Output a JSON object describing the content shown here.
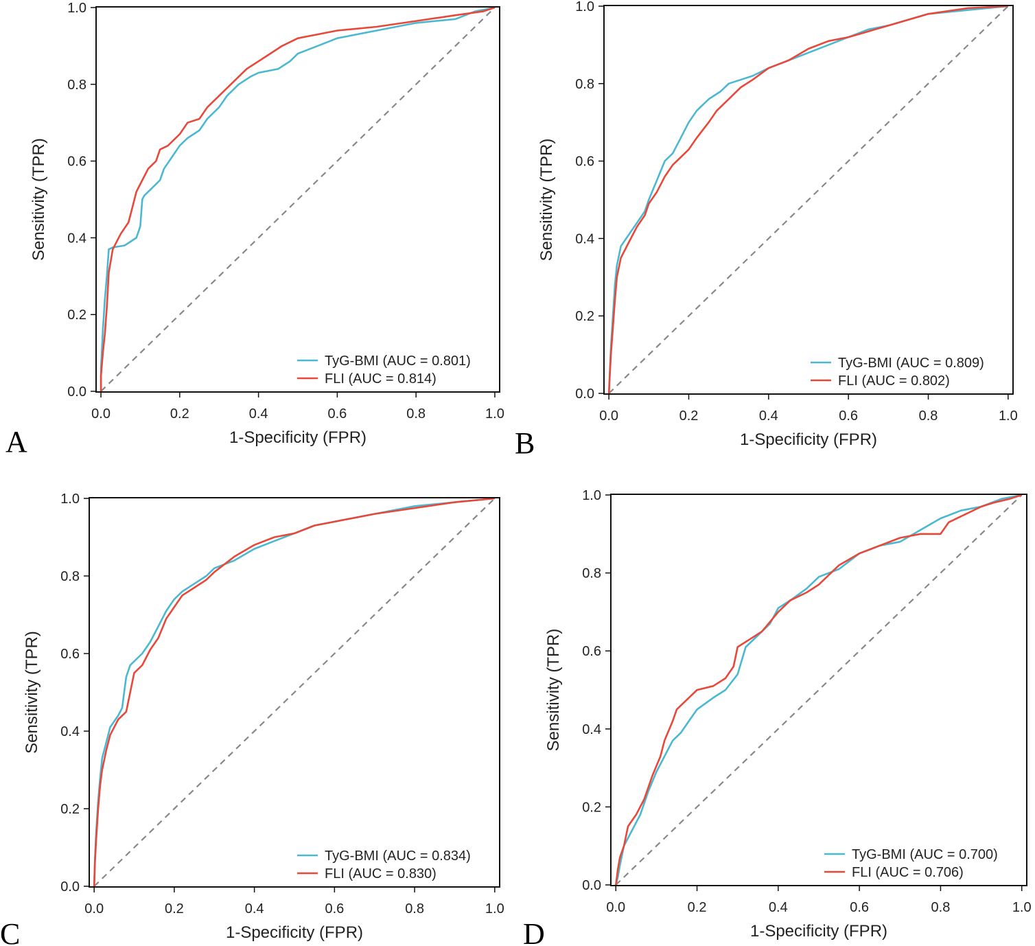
{
  "figure": {
    "colors": {
      "tyg": "#4bb8d1",
      "fli": "#e8483a",
      "diag": "#888888",
      "frame": "#111111"
    }
  },
  "chart_data": [
    {
      "type": "line",
      "panel": "A",
      "xlabel": "1-Specificity (FPR)",
      "ylabel": "Sensitivity (TPR)",
      "xlim": [
        0,
        1
      ],
      "ylim": [
        0,
        1
      ],
      "xticks": [
        "0.0",
        "0.2",
        "0.4",
        "0.6",
        "0.8",
        "1.0"
      ],
      "yticks": [
        "0.0",
        "0.2",
        "0.4",
        "0.6",
        "0.8",
        "1.0"
      ],
      "legend_position": "bottom-right",
      "series": [
        {
          "name": "TyG-BMI",
          "legend": "TyG-BMI (AUC = 0.801)",
          "color": "#4bb8d1",
          "x": [
            0,
            0,
            0.005,
            0.01,
            0.015,
            0.02,
            0.03,
            0.06,
            0.09,
            0.1,
            0.105,
            0.11,
            0.13,
            0.15,
            0.16,
            0.18,
            0.2,
            0.22,
            0.25,
            0.27,
            0.3,
            0.32,
            0.35,
            0.38,
            0.4,
            0.45,
            0.48,
            0.5,
            0.55,
            0.6,
            0.7,
            0.8,
            0.9,
            0.95,
            1
          ],
          "y": [
            0,
            0.06,
            0.16,
            0.24,
            0.3,
            0.37,
            0.375,
            0.38,
            0.4,
            0.43,
            0.5,
            0.51,
            0.53,
            0.55,
            0.58,
            0.61,
            0.64,
            0.66,
            0.68,
            0.71,
            0.74,
            0.77,
            0.8,
            0.82,
            0.83,
            0.84,
            0.86,
            0.88,
            0.9,
            0.92,
            0.94,
            0.96,
            0.97,
            0.99,
            1
          ]
        },
        {
          "name": "FLI",
          "legend": "FLI (AUC = 0.814)",
          "color": "#e8483a",
          "x": [
            0,
            0,
            0.005,
            0.01,
            0.015,
            0.02,
            0.03,
            0.05,
            0.07,
            0.08,
            0.09,
            0.1,
            0.12,
            0.14,
            0.15,
            0.17,
            0.2,
            0.22,
            0.25,
            0.27,
            0.3,
            0.33,
            0.35,
            0.37,
            0.4,
            0.43,
            0.46,
            0.5,
            0.55,
            0.6,
            0.7,
            0.8,
            0.9,
            0.97,
            1
          ],
          "y": [
            0,
            0.04,
            0.1,
            0.15,
            0.22,
            0.31,
            0.37,
            0.41,
            0.44,
            0.48,
            0.52,
            0.54,
            0.58,
            0.6,
            0.63,
            0.64,
            0.67,
            0.7,
            0.71,
            0.74,
            0.77,
            0.8,
            0.82,
            0.84,
            0.86,
            0.88,
            0.9,
            0.92,
            0.93,
            0.94,
            0.95,
            0.965,
            0.98,
            0.99,
            1
          ]
        },
        {
          "name": "diagonal",
          "style": "dashed",
          "color": "#888888",
          "x": [
            0,
            1
          ],
          "y": [
            0,
            1
          ]
        }
      ]
    },
    {
      "type": "line",
      "panel": "B",
      "xlabel": "1-Specificity (FPR)",
      "ylabel": "Sensitivity (TPR)",
      "xlim": [
        0,
        1
      ],
      "ylim": [
        0,
        1
      ],
      "xticks": [
        "0.0",
        "0.2",
        "0.4",
        "0.6",
        "0.8",
        "1.0"
      ],
      "yticks": [
        "0.0",
        "0.2",
        "0.4",
        "0.6",
        "0.8",
        "1.0"
      ],
      "legend_position": "bottom-right",
      "series": [
        {
          "name": "TyG-BMI",
          "legend": "TyG-BMI (AUC = 0.809)",
          "color": "#4bb8d1",
          "x": [
            0,
            0.002,
            0.005,
            0.01,
            0.015,
            0.02,
            0.03,
            0.05,
            0.07,
            0.09,
            0.1,
            0.12,
            0.14,
            0.16,
            0.18,
            0.2,
            0.22,
            0.25,
            0.28,
            0.3,
            0.33,
            0.36,
            0.4,
            0.45,
            0.5,
            0.55,
            0.6,
            0.65,
            0.7,
            0.8,
            0.9,
            1
          ],
          "y": [
            0,
            0.05,
            0.12,
            0.2,
            0.28,
            0.33,
            0.38,
            0.41,
            0.44,
            0.47,
            0.5,
            0.55,
            0.6,
            0.62,
            0.66,
            0.7,
            0.73,
            0.76,
            0.78,
            0.8,
            0.81,
            0.82,
            0.84,
            0.86,
            0.88,
            0.9,
            0.92,
            0.94,
            0.95,
            0.98,
            0.99,
            1
          ]
        },
        {
          "name": "FLI",
          "legend": "FLI (AUC = 0.802)",
          "color": "#e8483a",
          "x": [
            0,
            0.002,
            0.005,
            0.01,
            0.015,
            0.02,
            0.03,
            0.05,
            0.07,
            0.09,
            0.1,
            0.12,
            0.14,
            0.16,
            0.18,
            0.2,
            0.22,
            0.25,
            0.27,
            0.3,
            0.33,
            0.36,
            0.4,
            0.45,
            0.5,
            0.55,
            0.6,
            0.65,
            0.7,
            0.8,
            0.9,
            1
          ],
          "y": [
            0,
            0.04,
            0.1,
            0.17,
            0.24,
            0.3,
            0.35,
            0.39,
            0.43,
            0.46,
            0.49,
            0.52,
            0.56,
            0.59,
            0.61,
            0.63,
            0.66,
            0.7,
            0.73,
            0.76,
            0.79,
            0.81,
            0.84,
            0.86,
            0.89,
            0.91,
            0.92,
            0.935,
            0.95,
            0.98,
            0.995,
            1
          ]
        },
        {
          "name": "diagonal",
          "style": "dashed",
          "color": "#888888",
          "x": [
            0,
            1
          ],
          "y": [
            0,
            1
          ]
        }
      ]
    },
    {
      "type": "line",
      "panel": "C",
      "xlabel": "1-Specificity (FPR)",
      "ylabel": "Sensitivity (TPR)",
      "xlim": [
        0,
        1
      ],
      "ylim": [
        0,
        1
      ],
      "xticks": [
        "0.0",
        "0.2",
        "0.4",
        "0.6",
        "0.8",
        "1.0"
      ],
      "yticks": [
        "0.0",
        "0.2",
        "0.4",
        "0.6",
        "0.8",
        "1.0"
      ],
      "legend_position": "bottom-right",
      "series": [
        {
          "name": "TyG-BMI",
          "legend": "TyG-BMI (AUC = 0.834)",
          "color": "#4bb8d1",
          "x": [
            0,
            0.002,
            0.005,
            0.01,
            0.015,
            0.02,
            0.03,
            0.04,
            0.06,
            0.07,
            0.075,
            0.08,
            0.09,
            0.1,
            0.12,
            0.14,
            0.16,
            0.18,
            0.2,
            0.22,
            0.25,
            0.28,
            0.3,
            0.35,
            0.4,
            0.45,
            0.5,
            0.55,
            0.6,
            0.7,
            0.8,
            0.9,
            1
          ],
          "y": [
            0,
            0.07,
            0.14,
            0.22,
            0.28,
            0.33,
            0.37,
            0.41,
            0.44,
            0.46,
            0.5,
            0.54,
            0.57,
            0.58,
            0.6,
            0.63,
            0.67,
            0.71,
            0.74,
            0.76,
            0.78,
            0.8,
            0.82,
            0.84,
            0.87,
            0.89,
            0.91,
            0.93,
            0.94,
            0.96,
            0.98,
            0.99,
            1
          ]
        },
        {
          "name": "FLI",
          "legend": "FLI (AUC = 0.830)",
          "color": "#e8483a",
          "x": [
            0,
            0.002,
            0.005,
            0.01,
            0.015,
            0.02,
            0.03,
            0.04,
            0.06,
            0.08,
            0.09,
            0.1,
            0.12,
            0.14,
            0.16,
            0.18,
            0.2,
            0.22,
            0.25,
            0.28,
            0.3,
            0.35,
            0.4,
            0.45,
            0.5,
            0.55,
            0.6,
            0.7,
            0.8,
            0.9,
            1
          ],
          "y": [
            0,
            0.06,
            0.12,
            0.2,
            0.26,
            0.3,
            0.35,
            0.39,
            0.43,
            0.45,
            0.5,
            0.55,
            0.57,
            0.61,
            0.64,
            0.69,
            0.72,
            0.75,
            0.77,
            0.79,
            0.81,
            0.85,
            0.88,
            0.9,
            0.91,
            0.93,
            0.94,
            0.96,
            0.975,
            0.99,
            1
          ]
        },
        {
          "name": "diagonal",
          "style": "dashed",
          "color": "#888888",
          "x": [
            0,
            1
          ],
          "y": [
            0,
            1
          ]
        }
      ]
    },
    {
      "type": "line",
      "panel": "D",
      "xlabel": "1-Specificity (FPR)",
      "ylabel": "Sensitivity (TPR)",
      "xlim": [
        0,
        1
      ],
      "ylim": [
        0,
        1
      ],
      "xticks": [
        "0.0",
        "0.2",
        "0.4",
        "0.6",
        "0.8",
        "1.0"
      ],
      "yticks": [
        "0.0",
        "0.2",
        "0.4",
        "0.6",
        "0.8",
        "1.0"
      ],
      "legend_position": "bottom-right",
      "series": [
        {
          "name": "TyG-BMI",
          "legend": "TyG-BMI (AUC = 0.700)",
          "color": "#4bb8d1",
          "x": [
            0,
            0.005,
            0.01,
            0.02,
            0.04,
            0.06,
            0.08,
            0.1,
            0.12,
            0.14,
            0.16,
            0.18,
            0.2,
            0.24,
            0.27,
            0.3,
            0.32,
            0.35,
            0.38,
            0.4,
            0.43,
            0.47,
            0.5,
            0.55,
            0.6,
            0.65,
            0.7,
            0.75,
            0.8,
            0.85,
            0.9,
            0.95,
            1
          ],
          "y": [
            0,
            0.02,
            0.05,
            0.1,
            0.14,
            0.18,
            0.24,
            0.29,
            0.33,
            0.37,
            0.39,
            0.42,
            0.45,
            0.48,
            0.5,
            0.54,
            0.61,
            0.64,
            0.67,
            0.71,
            0.73,
            0.76,
            0.79,
            0.81,
            0.85,
            0.87,
            0.88,
            0.91,
            0.94,
            0.96,
            0.97,
            0.99,
            1
          ]
        },
        {
          "name": "FLI",
          "legend": "FLI (AUC = 0.706)",
          "color": "#e8483a",
          "x": [
            0,
            0.005,
            0.01,
            0.02,
            0.03,
            0.05,
            0.07,
            0.09,
            0.11,
            0.12,
            0.14,
            0.15,
            0.18,
            0.2,
            0.24,
            0.27,
            0.29,
            0.3,
            0.33,
            0.36,
            0.4,
            0.43,
            0.47,
            0.5,
            0.55,
            0.6,
            0.65,
            0.7,
            0.75,
            0.8,
            0.82,
            0.86,
            0.9,
            0.93,
            0.97,
            1
          ],
          "y": [
            0,
            0.04,
            0.07,
            0.1,
            0.15,
            0.18,
            0.22,
            0.28,
            0.33,
            0.37,
            0.42,
            0.45,
            0.48,
            0.5,
            0.51,
            0.53,
            0.56,
            0.61,
            0.63,
            0.65,
            0.7,
            0.73,
            0.75,
            0.77,
            0.82,
            0.85,
            0.87,
            0.89,
            0.9,
            0.9,
            0.93,
            0.95,
            0.97,
            0.98,
            0.99,
            1
          ]
        },
        {
          "name": "diagonal",
          "style": "dashed",
          "color": "#888888",
          "x": [
            0,
            1
          ],
          "y": [
            0,
            1
          ]
        }
      ]
    }
  ]
}
